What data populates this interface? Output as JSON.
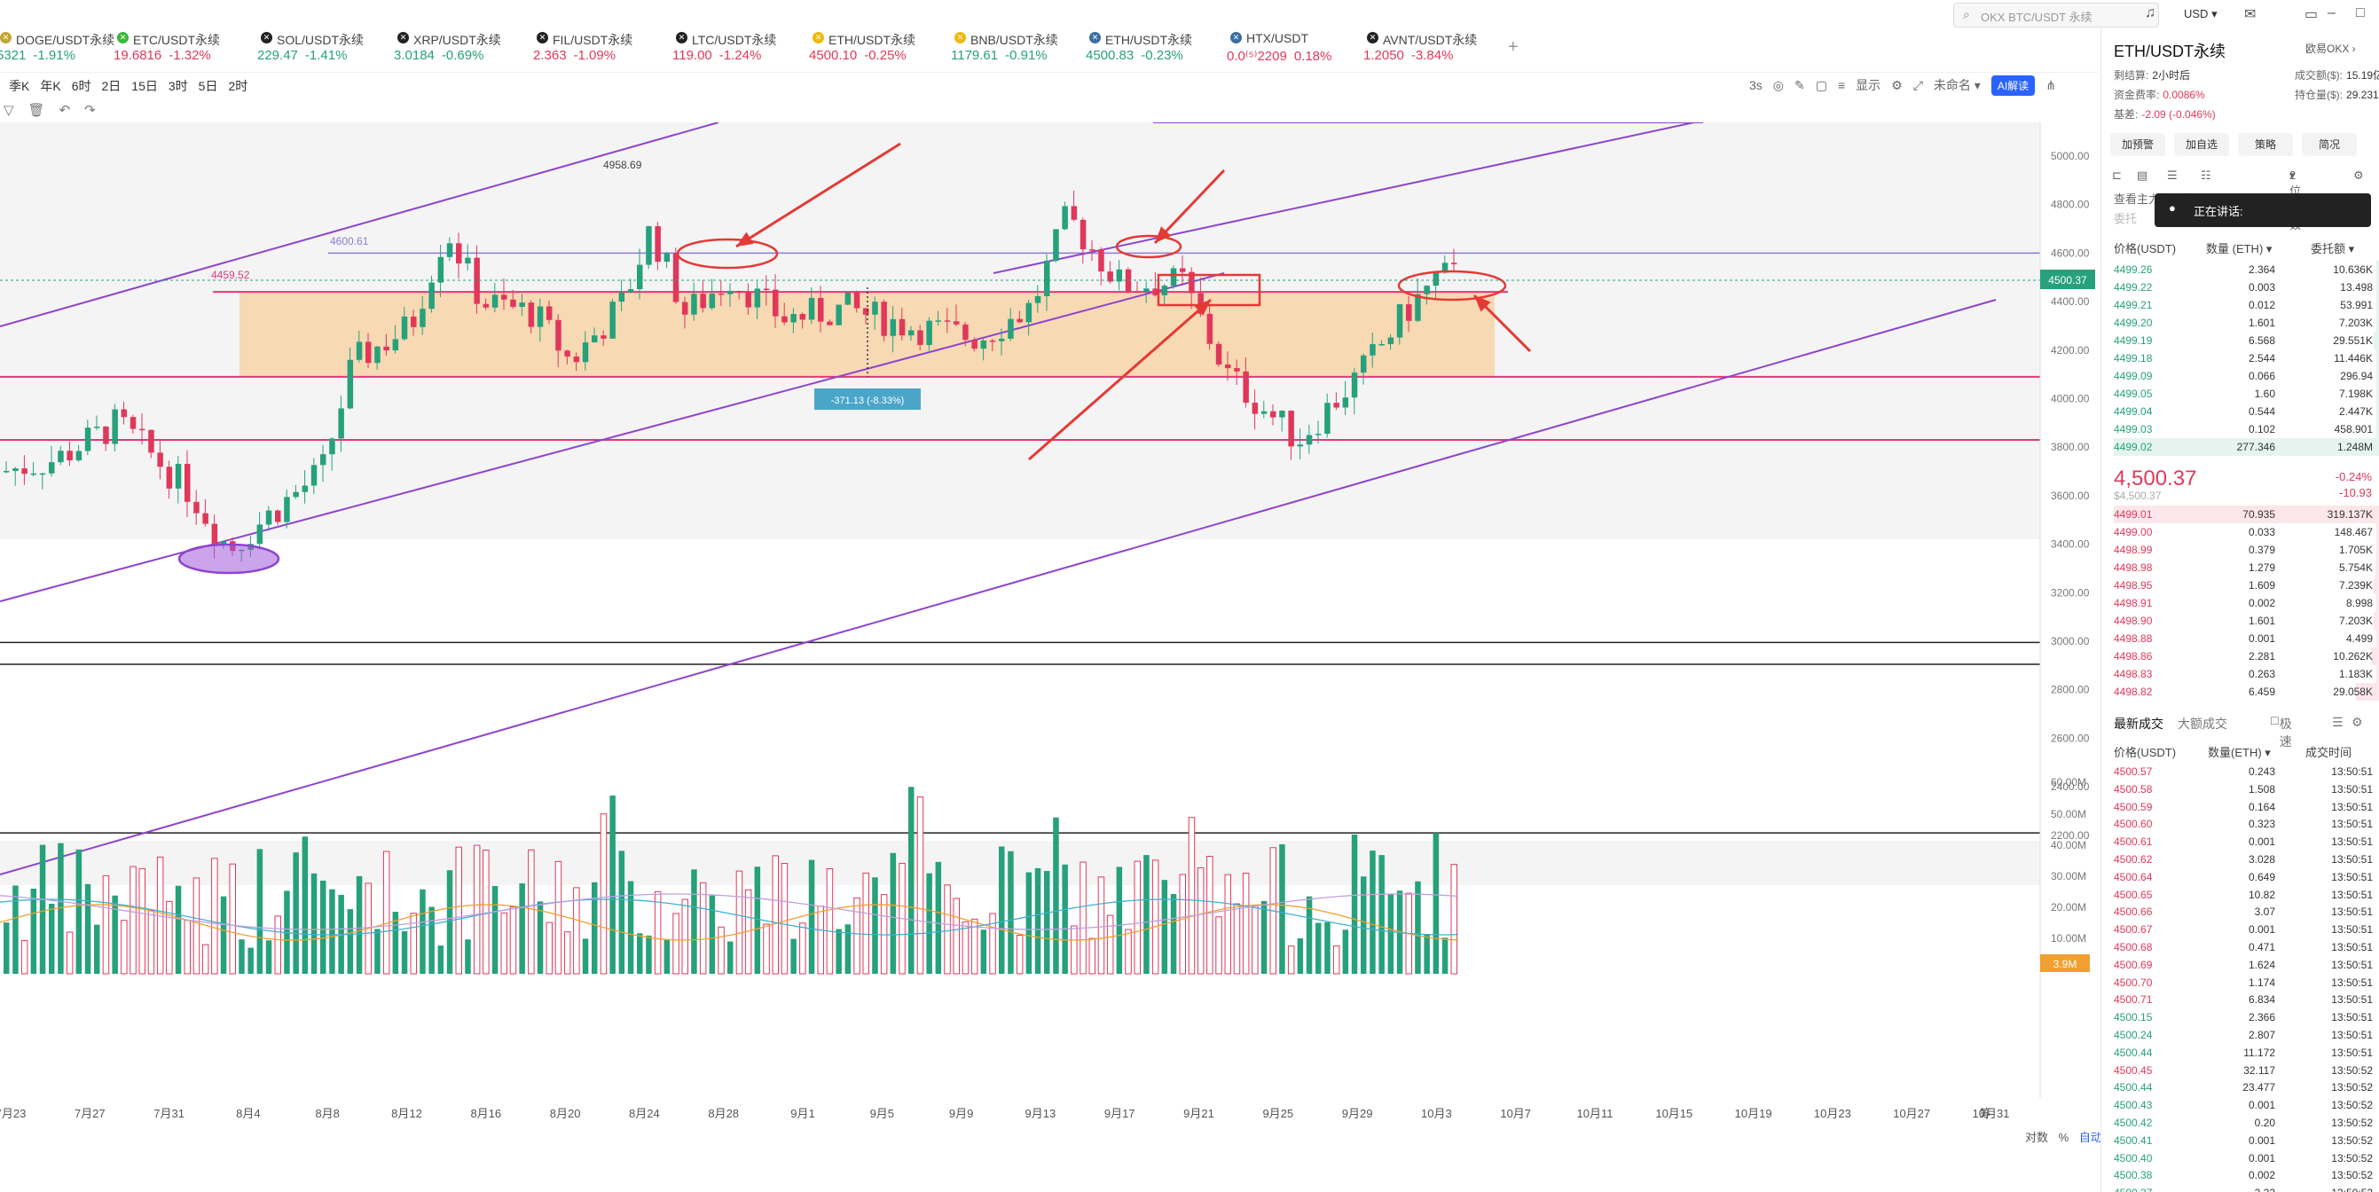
{
  "tickers": [
    {
      "name": "DOGE/USDT永续",
      "price": "5321",
      "change": "-1.91%",
      "dir": "down",
      "price_dir": "up",
      "icon": "doge-icon",
      "icon_color": "#c2a633"
    },
    {
      "name": "ETC/USDT永续",
      "price": "19.6816",
      "change": "-1.32%",
      "dir": "down",
      "price_dir": "down",
      "icon": "etc-icon",
      "icon_color": "#3ab83a"
    },
    {
      "name": "SOL/USDT永续",
      "price": "229.47",
      "change": "-1.41%",
      "dir": "down",
      "price_dir": "up",
      "icon": "sol-icon",
      "icon_color": "#222222"
    },
    {
      "name": "XRP/USDT永续",
      "price": "3.0184",
      "change": "-0.69%",
      "dir": "down",
      "price_dir": "up",
      "icon": "xrp-icon",
      "icon_color": "#222222"
    },
    {
      "name": "FIL/USDT永续",
      "price": "2.363",
      "change": "-1.09%",
      "dir": "down",
      "price_dir": "down",
      "icon": "fil-icon",
      "icon_color": "#222222"
    },
    {
      "name": "LTC/USDT永续",
      "price": "119.00",
      "change": "-1.24%",
      "dir": "down",
      "price_dir": "down",
      "icon": "ltc-icon",
      "icon_color": "#222222"
    },
    {
      "name": "ETH/USDT永续",
      "price": "4500.10",
      "change": "-0.25%",
      "dir": "down",
      "price_dir": "down",
      "icon": "eth-icon",
      "icon_color": "#f0b90b"
    },
    {
      "name": "BNB/USDT永续",
      "price": "1179.61",
      "change": "-0.91%",
      "dir": "down",
      "price_dir": "up",
      "icon": "bnb-icon",
      "icon_color": "#f0b90b"
    },
    {
      "name": "ETH/USDT永续",
      "price": "4500.83",
      "change": "-0.23%",
      "dir": "down",
      "price_dir": "up",
      "icon": "eth-icon",
      "icon_color": "#3a6ea5"
    },
    {
      "name": "HTX/USDT",
      "price": "0.0⁽⁵⁾2209",
      "change": "0.18%",
      "dir": "down",
      "price_dir": "down",
      "icon": "htx-icon",
      "icon_color": "#3a6ea5"
    },
    {
      "name": "AVNT/USDT永续",
      "price": "1.2050",
      "change": "-3.84%",
      "dir": "down",
      "price_dir": "down",
      "icon": "avnt-icon",
      "icon_color": "#222222"
    }
  ],
  "search": {
    "placeholder": "OKX BTC/USDT 永续"
  },
  "currency": "USD",
  "intervals": [
    "季K",
    "年K",
    "6时",
    "2日",
    "15日",
    "3时",
    "5日",
    "2时"
  ],
  "chart_tools": {
    "refresh": "3s",
    "display": "显示",
    "unnamed": "未命名",
    "ai": "AI解读"
  },
  "chart": {
    "price_axis": [
      "5000.00",
      "4800.00",
      "4600.00",
      "4400.00",
      "4200.00",
      "4000.00",
      "3800.00",
      "3600.00",
      "3400.00",
      "3200.00",
      "3000.00",
      "2800.00",
      "2600.00",
      "2400.00",
      "2200.00"
    ],
    "volume_axis": [
      "60.00M",
      "50.00M",
      "40.00M",
      "30.00M",
      "20.00M",
      "10.00M"
    ],
    "current_price": "4500.37",
    "current_volume": "3.9M",
    "annotations": {
      "high": "4958.69",
      "level1": "4600.61",
      "level2": "4459.52",
      "measure": "-371.13 (-8.33%)"
    },
    "date_labels": [
      "7月23",
      "7月27",
      "7月31",
      "8月4",
      "8月8",
      "8月12",
      "8月16",
      "8月20",
      "8月24",
      "8月28",
      "9月1",
      "9月5",
      "9月9",
      "9月13",
      "9月17",
      "9月21",
      "9月25",
      "9月29",
      "10月3",
      "10月7",
      "10月11",
      "10月15",
      "10月19",
      "10月23",
      "10月27",
      "10月31",
      "筹"
    ],
    "axis_controls": {
      "log": "对数",
      "percent": "%",
      "auto": "自动"
    },
    "colors": {
      "up": "#26a17b",
      "down": "#e0385a",
      "channel": "#8e44cc",
      "zone": "#f7d3a8",
      "level": "#e0387a",
      "arrow": "#e53935"
    }
  },
  "side": {
    "symbol": "ETH/USDT永续",
    "symbol_link": "欧易OKX",
    "stats": [
      {
        "label": "剩结算:",
        "value": "2小时后",
        "red": false
      },
      {
        "label": "成交额($):",
        "value": "15.19亿",
        "red": false
      },
      {
        "label": "资金费率:",
        "value": "0.0086%",
        "red": true
      },
      {
        "label": "持仓量($):",
        "value": "29.231亿",
        "red": false
      },
      {
        "label": "基差:",
        "value": "-2.09 (-0.046%)",
        "red": true
      }
    ],
    "buttons": [
      "加预警",
      "加自选",
      "策略",
      "简况"
    ],
    "precision": "2位小数",
    "main_hint": "查看主力持仓情况",
    "main_hint2": "委托",
    "discuss": "正在讲话:",
    "ob_headers": {
      "price": "价格(USDT)",
      "qty": "数量 (ETH)",
      "total": "委托额"
    },
    "asks": [
      {
        "p": "4499.26",
        "q": "2.364",
        "t": "10.636K"
      },
      {
        "p": "4499.22",
        "q": "0.003",
        "t": "13.498"
      },
      {
        "p": "4499.21",
        "q": "0.012",
        "t": "53.991"
      },
      {
        "p": "4499.20",
        "q": "1.601",
        "t": "7.203K"
      },
      {
        "p": "4499.19",
        "q": "6.568",
        "t": "29.551K"
      },
      {
        "p": "4499.18",
        "q": "2.544",
        "t": "11.446K"
      },
      {
        "p": "4499.09",
        "q": "0.066",
        "t": "296.94"
      },
      {
        "p": "4499.05",
        "q": "1.60",
        "t": "7.198K"
      },
      {
        "p": "4499.04",
        "q": "0.544",
        "t": "2.447K"
      },
      {
        "p": "4499.03",
        "q": "0.102",
        "t": "458.901"
      },
      {
        "p": "4499.02",
        "q": "277.346",
        "t": "1.248M"
      }
    ],
    "last_price": "4,500.37",
    "last_sub": "$4,500.37",
    "last_change_pct": "-0.24%",
    "last_change_abs": "-10.93",
    "bids": [
      {
        "p": "4499.01",
        "q": "70.935",
        "t": "319.137K"
      },
      {
        "p": "4499.00",
        "q": "0.033",
        "t": "148.467"
      },
      {
        "p": "4498.99",
        "q": "0.379",
        "t": "1.705K"
      },
      {
        "p": "4498.98",
        "q": "1.279",
        "t": "5.754K"
      },
      {
        "p": "4498.95",
        "q": "1.609",
        "t": "7.239K"
      },
      {
        "p": "4498.91",
        "q": "0.002",
        "t": "8.998"
      },
      {
        "p": "4498.90",
        "q": "1.601",
        "t": "7.203K"
      },
      {
        "p": "4498.88",
        "q": "0.001",
        "t": "4.499"
      },
      {
        "p": "4498.86",
        "q": "2.281",
        "t": "10.262K"
      },
      {
        "p": "4498.83",
        "q": "0.263",
        "t": "1.183K"
      },
      {
        "p": "4498.82",
        "q": "6.459",
        "t": "29.058K"
      }
    ],
    "trades_tabs": [
      "最新成交",
      "大额成交"
    ],
    "trades_option": "极速",
    "trades_headers": {
      "price": "价格(USDT)",
      "qty": "数量(ETH)",
      "time": "成交时间"
    },
    "trades": [
      {
        "p": "4500.57",
        "q": "0.243",
        "t": "13:50:51",
        "side": "down"
      },
      {
        "p": "4500.58",
        "q": "1.508",
        "t": "13:50:51",
        "side": "down"
      },
      {
        "p": "4500.59",
        "q": "0.164",
        "t": "13:50:51",
        "side": "down"
      },
      {
        "p": "4500.60",
        "q": "0.323",
        "t": "13:50:51",
        "side": "down"
      },
      {
        "p": "4500.61",
        "q": "0.001",
        "t": "13:50:51",
        "side": "down"
      },
      {
        "p": "4500.62",
        "q": "3.028",
        "t": "13:50:51",
        "side": "down"
      },
      {
        "p": "4500.64",
        "q": "0.649",
        "t": "13:50:51",
        "side": "down"
      },
      {
        "p": "4500.65",
        "q": "10.82",
        "t": "13:50:51",
        "side": "down"
      },
      {
        "p": "4500.66",
        "q": "3.07",
        "t": "13:50:51",
        "side": "down"
      },
      {
        "p": "4500.67",
        "q": "0.001",
        "t": "13:50:51",
        "side": "down"
      },
      {
        "p": "4500.68",
        "q": "0.471",
        "t": "13:50:51",
        "side": "down"
      },
      {
        "p": "4500.69",
        "q": "1.624",
        "t": "13:50:51",
        "side": "down"
      },
      {
        "p": "4500.70",
        "q": "1.174",
        "t": "13:50:51",
        "side": "down"
      },
      {
        "p": "4500.71",
        "q": "6.834",
        "t": "13:50:51",
        "side": "down"
      },
      {
        "p": "4500.15",
        "q": "2.366",
        "t": "13:50:51",
        "side": "up"
      },
      {
        "p": "4500.24",
        "q": "2.807",
        "t": "13:50:51",
        "side": "up"
      },
      {
        "p": "4500.44",
        "q": "11.172",
        "t": "13:50:51",
        "side": "up"
      },
      {
        "p": "4500.45",
        "q": "32.117",
        "t": "13:50:52",
        "side": "down"
      },
      {
        "p": "4500.44",
        "q": "23.477",
        "t": "13:50:52",
        "side": "up"
      },
      {
        "p": "4500.43",
        "q": "0.001",
        "t": "13:50:52",
        "side": "up"
      },
      {
        "p": "4500.42",
        "q": "0.20",
        "t": "13:50:52",
        "side": "up"
      },
      {
        "p": "4500.41",
        "q": "0.001",
        "t": "13:50:52",
        "side": "up"
      },
      {
        "p": "4500.40",
        "q": "0.001",
        "t": "13:50:52",
        "side": "up"
      },
      {
        "p": "4500.38",
        "q": "0.002",
        "t": "13:50:52",
        "side": "up"
      },
      {
        "p": "4500.37",
        "q": "2.22",
        "t": "13:50:52",
        "side": "up"
      }
    ]
  }
}
